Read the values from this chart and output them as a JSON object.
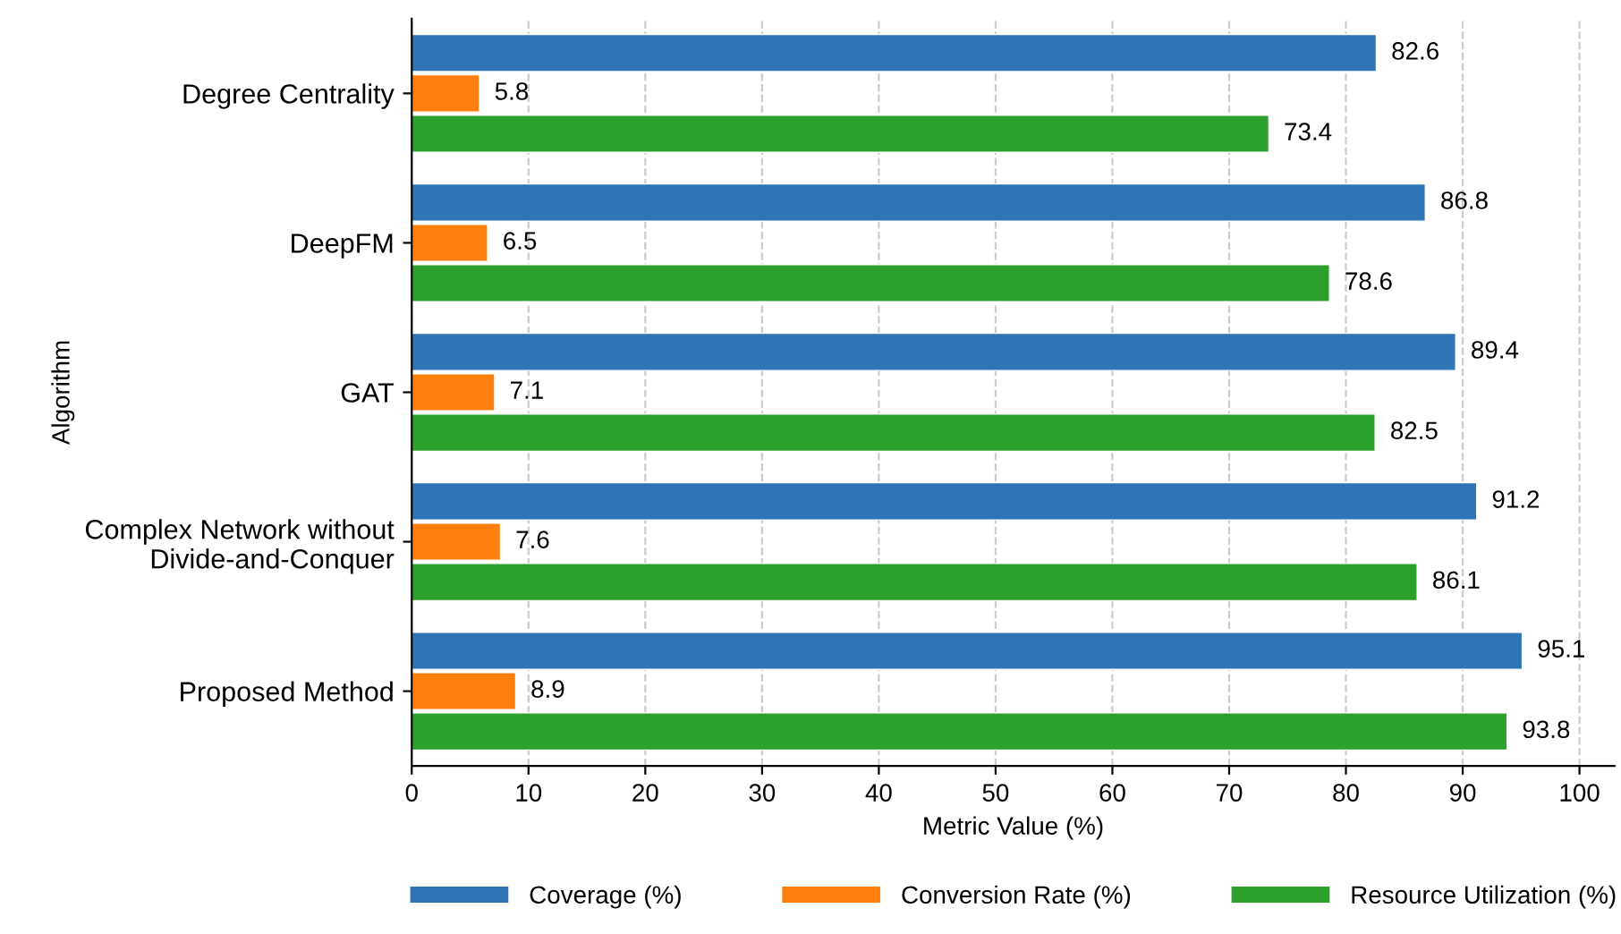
{
  "chart_data": {
    "type": "bar",
    "orientation": "horizontal",
    "xlabel": "Metric Value (%)",
    "ylabel": "Algorithm",
    "categories": [
      "Degree Centrality",
      "DeepFM",
      "GAT",
      "Complex Network without\nDivide-and-Conquer",
      "Proposed Method"
    ],
    "series": [
      {
        "name": "Coverage (%)",
        "color": "#2f75b5",
        "values": [
          82.6,
          86.8,
          89.4,
          91.2,
          95.1
        ]
      },
      {
        "name": "Conversion Rate (%)",
        "color": "#ff7f0e",
        "values": [
          5.8,
          6.5,
          7.1,
          7.6,
          8.9
        ]
      },
      {
        "name": "Resource Utilization (%)",
        "color": "#2ca02c",
        "values": [
          73.4,
          78.6,
          82.5,
          86.1,
          93.8
        ]
      }
    ],
    "xlim": [
      0,
      103
    ],
    "xticks": [
      0,
      10,
      20,
      30,
      40,
      50,
      60,
      70,
      80,
      90,
      100
    ],
    "grid": "x",
    "legend": "bottom",
    "data_labels": true
  }
}
